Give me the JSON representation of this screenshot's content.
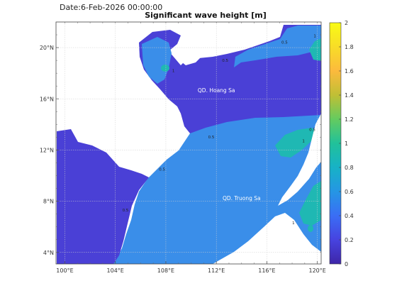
{
  "header": {
    "date_label": "Date:6-Feb-2026 00:00:00",
    "title": "Significant wave height [m]"
  },
  "map": {
    "lon_range": [
      99.3,
      120.3
    ],
    "lat_range": [
      3.1,
      22.0
    ],
    "lon_ticks": [
      {
        "value": 100,
        "label": "100°E"
      },
      {
        "value": 104,
        "label": "104°E"
      },
      {
        "value": 108,
        "label": "108°E"
      },
      {
        "value": 112,
        "label": "112°E"
      },
      {
        "value": 116,
        "label": "116°E"
      },
      {
        "value": 120,
        "label": "120°E"
      }
    ],
    "lat_ticks": [
      {
        "value": 4,
        "label": "4°N"
      },
      {
        "value": 8,
        "label": "8°N"
      },
      {
        "value": 12,
        "label": "12°N"
      },
      {
        "value": 16,
        "label": "16°N"
      },
      {
        "value": 20,
        "label": "20°N"
      }
    ],
    "grid": true,
    "region_labels": [
      {
        "text": "QD. Hoang Sa",
        "lon": 112.0,
        "lat": 16.5
      },
      {
        "text": "QD. Truong Sa",
        "lon": 114.0,
        "lat": 8.1
      }
    ],
    "contour_labels": [
      {
        "text": "0.5",
        "lon": 111.6,
        "lat": 12.9
      },
      {
        "text": "0.5",
        "lon": 112.7,
        "lat": 18.9
      },
      {
        "text": "0.5",
        "lon": 107.7,
        "lat": 10.4
      },
      {
        "text": "0.5",
        "lon": 104.8,
        "lat": 7.2
      },
      {
        "text": "0.5",
        "lon": 117.4,
        "lat": 20.3
      },
      {
        "text": "0.5",
        "lon": 119.6,
        "lat": 13.5
      },
      {
        "text": "1",
        "lon": 118.9,
        "lat": 12.6
      },
      {
        "text": "1",
        "lon": 118.1,
        "lat": 6.2
      },
      {
        "text": "1",
        "lon": 119.8,
        "lat": 20.8
      },
      {
        "text": "1",
        "lon": 108.6,
        "lat": 18.1
      }
    ],
    "colors": {
      "ocean_low": "#4a40d6",
      "ocean_mid": "#3a8ee9",
      "ocean_high": "#1fb8b3",
      "land": "#ffffff",
      "grid": "#cfcfcf"
    }
  },
  "colorbar": {
    "min": 0,
    "max": 2,
    "ticks": [
      {
        "value": 0,
        "label": "0"
      },
      {
        "value": 0.2,
        "label": "0.2"
      },
      {
        "value": 0.4,
        "label": "0.4"
      },
      {
        "value": 0.6,
        "label": "0.6"
      },
      {
        "value": 0.8,
        "label": "0.8"
      },
      {
        "value": 1,
        "label": "1"
      },
      {
        "value": 1.2,
        "label": "1.2"
      },
      {
        "value": 1.4,
        "label": "1.4"
      },
      {
        "value": 1.6,
        "label": "1.6"
      },
      {
        "value": 1.8,
        "label": "1.8"
      },
      {
        "value": 2,
        "label": "2"
      }
    ],
    "stops": [
      "#3e26a8",
      "#4743e0",
      "#3a6ef5",
      "#2596e4",
      "#17b2c6",
      "#21c19a",
      "#64cb5f",
      "#c0bf35",
      "#fcba3d",
      "#f8dd27",
      "#f9fb15"
    ]
  }
}
